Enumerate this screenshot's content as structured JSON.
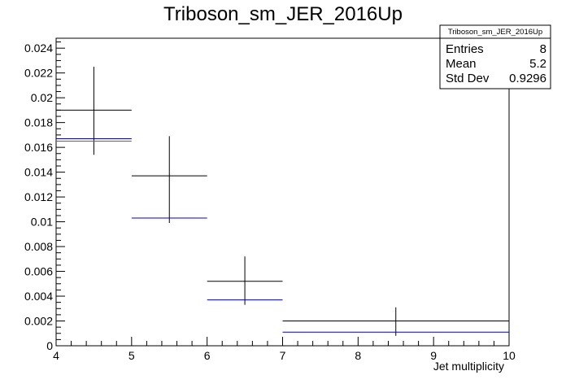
{
  "chart_data": {
    "type": "histogram",
    "title": "Triboson_sm_JER_2016Up",
    "xlabel": "Jet multiplicity",
    "ylabel": "",
    "xlim": [
      4,
      10
    ],
    "ylim": [
      0,
      0.0248
    ],
    "x_ticks": [
      "4",
      "5",
      "6",
      "7",
      "8",
      "9",
      "10"
    ],
    "y_ticks": [
      "0",
      "0.002",
      "0.004",
      "0.006",
      "0.008",
      "0.01",
      "0.012",
      "0.014",
      "0.016",
      "0.018",
      "0.02",
      "0.022",
      "0.024"
    ],
    "grid": false,
    "series": [
      {
        "color": "#000000",
        "style": "errorbar",
        "bins": [
          {
            "x_low": 4,
            "x_high": 5,
            "value": 0.019,
            "err_low": 0.0036,
            "err_high": 0.0035
          },
          {
            "x_low": 5,
            "x_high": 6,
            "value": 0.0137,
            "err_low": 0.0038,
            "err_high": 0.0032
          },
          {
            "x_low": 6,
            "x_high": 7,
            "value": 0.0052,
            "err_low": 0.0019,
            "err_high": 0.002
          },
          {
            "x_low": 7,
            "x_high": 10,
            "value": 0.002,
            "err_low": 0.0012,
            "err_high": 0.0011
          }
        ]
      },
      {
        "color": "#00aa00",
        "style": "step",
        "bins": [
          {
            "x_low": 4,
            "x_high": 5,
            "value": 0.0165
          }
        ]
      },
      {
        "color": "#0000cc",
        "style": "step",
        "bins": [
          {
            "x_low": 4,
            "x_high": 5,
            "value": 0.0167
          },
          {
            "x_low": 5,
            "x_high": 6,
            "value": 0.0103
          },
          {
            "x_low": 6,
            "x_high": 7,
            "value": 0.0037
          },
          {
            "x_low": 7,
            "x_high": 10,
            "value": 0.0011
          }
        ]
      }
    ],
    "stats_box": {
      "title": "Triboson_sm_JER_2016Up",
      "rows": [
        {
          "label": "Entries",
          "value": "8"
        },
        {
          "label": "Mean",
          "value": "5.2"
        },
        {
          "label": "Std Dev",
          "value": "0.9296"
        }
      ],
      "position": "top-right"
    }
  }
}
